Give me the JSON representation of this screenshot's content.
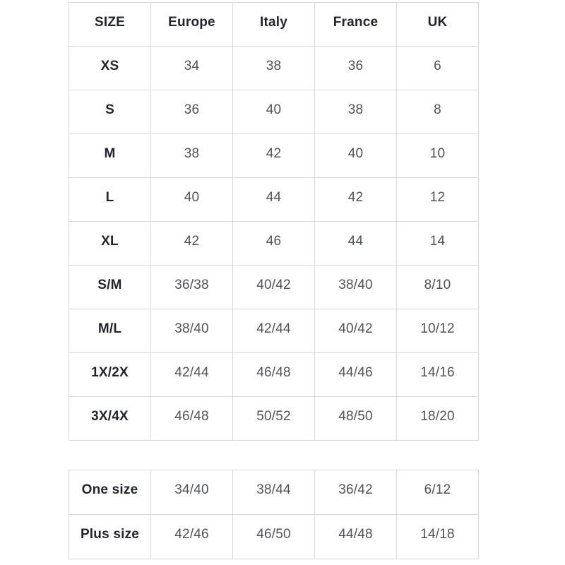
{
  "colors": {
    "border": "#d9d9d9",
    "header_text": "#23242e",
    "cell_text": "#515259",
    "page_background": "#ffffff"
  },
  "size_table": {
    "headers": [
      "SIZE",
      "Europe",
      "Italy",
      "France",
      "UK"
    ],
    "rows": [
      {
        "label": "XS",
        "values": [
          "34",
          "38",
          "36",
          "6"
        ]
      },
      {
        "label": "S",
        "values": [
          "36",
          "40",
          "38",
          "8"
        ]
      },
      {
        "label": "M",
        "values": [
          "38",
          "42",
          "40",
          "10"
        ]
      },
      {
        "label": "L",
        "values": [
          "40",
          "44",
          "42",
          "12"
        ]
      },
      {
        "label": "XL",
        "values": [
          "42",
          "46",
          "44",
          "14"
        ]
      },
      {
        "label": "S/M",
        "values": [
          "36/38",
          "40/42",
          "38/40",
          "8/10"
        ]
      },
      {
        "label": "M/L",
        "values": [
          "38/40",
          "42/44",
          "40/42",
          "10/12"
        ]
      },
      {
        "label": "1X/2X",
        "values": [
          "42/44",
          "46/48",
          "44/46",
          "14/16"
        ]
      },
      {
        "label": "3X/4X",
        "values": [
          "46/48",
          "50/52",
          "48/50",
          "18/20"
        ]
      }
    ]
  },
  "special_size_table": {
    "rows": [
      {
        "label": "One size",
        "values": [
          "34/40",
          "38/44",
          "36/42",
          "6/12"
        ]
      },
      {
        "label": "Plus size",
        "values": [
          "42/46",
          "46/50",
          "44/48",
          "14/18"
        ]
      }
    ]
  }
}
